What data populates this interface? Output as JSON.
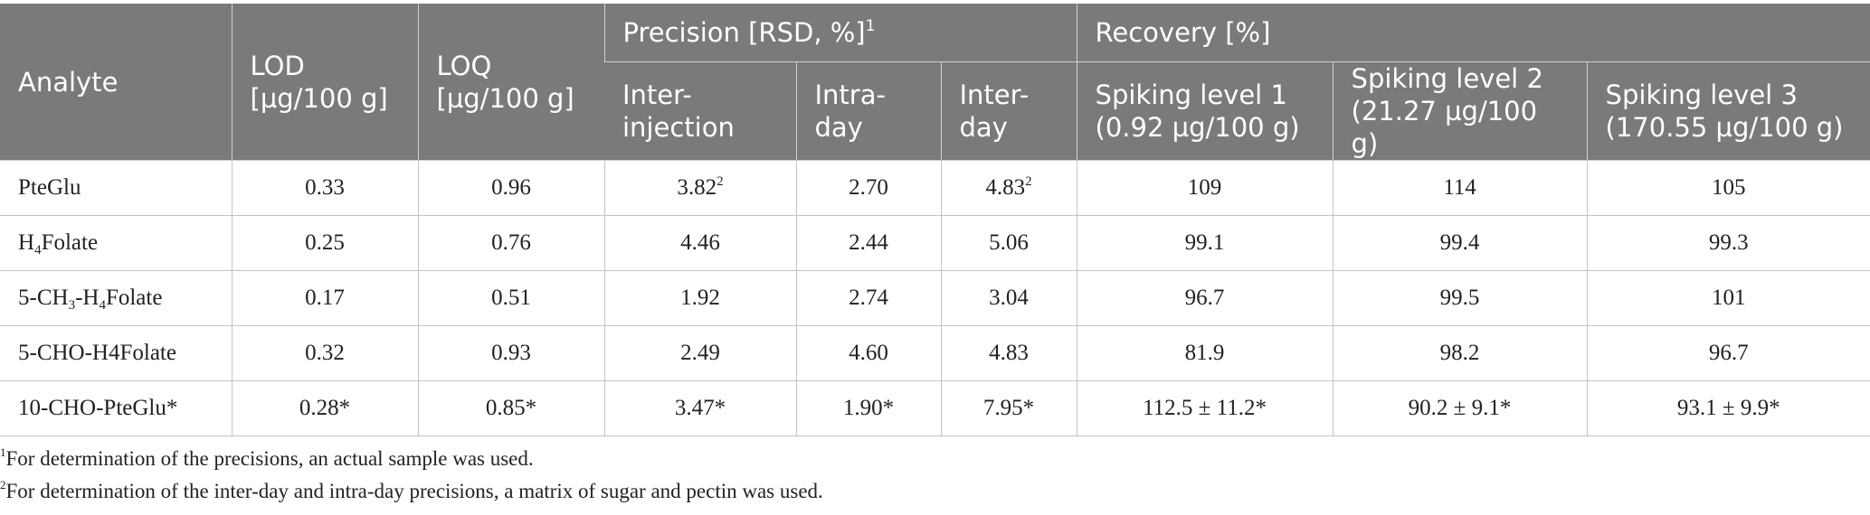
{
  "header": {
    "analyte": "Analyte",
    "lod_line1": "LOD",
    "lod_line2": "[µg/100 g]",
    "loq_line1": "LOQ",
    "loq_line2": "[µg/100 g]",
    "precision": "Precision [RSD, %]",
    "precision_sup": "1",
    "recovery": "Recovery [%]",
    "inter_injection_line1": "Inter-",
    "inter_injection_line2": "injection",
    "intra_day_line1": "Intra-",
    "intra_day_line2": "day",
    "inter_day_line1": "Inter-",
    "inter_day_line2": "day",
    "spike1_line1": "Spiking level 1",
    "spike1_line2": "(0.92 µg/100 g)",
    "spike2_line1": "Spiking level 2",
    "spike2_line2": "(21.27 µg/100 g)",
    "spike3_line1": "Spiking level 3",
    "spike3_line2": "(170.55 µg/100 g)"
  },
  "rows": [
    {
      "analyte_a": "PteGlu",
      "lod": "0.33",
      "loq": "0.96",
      "inter_injection": "3.82",
      "inter_injection_sup": "2",
      "intra_day": "2.70",
      "inter_day": "4.83",
      "inter_day_sup": "2",
      "spike1": "109",
      "spike2": "114",
      "spike3": "105"
    },
    {
      "analyte_a": "H",
      "analyte_sub1": "4",
      "analyte_b": "Folate",
      "lod": "0.25",
      "loq": "0.76",
      "inter_injection": "4.46",
      "intra_day": "2.44",
      "inter_day": "5.06",
      "spike1": "99.1",
      "spike2": "99.4",
      "spike3": "99.3"
    },
    {
      "analyte_a": "5-CH",
      "analyte_sub1": "3",
      "analyte_b": "-H",
      "analyte_sub2": "4",
      "analyte_c": "Folate",
      "lod": "0.17",
      "loq": "0.51",
      "inter_injection": "1.92",
      "intra_day": "2.74",
      "inter_day": "3.04",
      "spike1": "96.7",
      "spike2": "99.5",
      "spike3": "101"
    },
    {
      "analyte_a": "5-CHO-H4Folate",
      "lod": "0.32",
      "loq": "0.93",
      "inter_injection": "2.49",
      "intra_day": "4.60",
      "inter_day": "4.83",
      "spike1": "81.9",
      "spike2": "98.2",
      "spike3": "96.7"
    },
    {
      "analyte_a": "10-CHO-PteGlu*",
      "lod": "0.28*",
      "loq": "0.85*",
      "inter_injection": "3.47*",
      "intra_day": "1.90*",
      "inter_day": "7.95*",
      "spike1": "112.5 ± 11.2*",
      "spike2": "90.2 ± 9.1*",
      "spike3": "93.1 ± 9.9*"
    }
  ],
  "footnotes": [
    {
      "mark": "1",
      "text": "For determination of the precisions, an actual sample was used."
    },
    {
      "mark": "2",
      "text": "For determination of the inter-day and intra-day precisions, a matrix of sugar and pectin was used."
    }
  ]
}
